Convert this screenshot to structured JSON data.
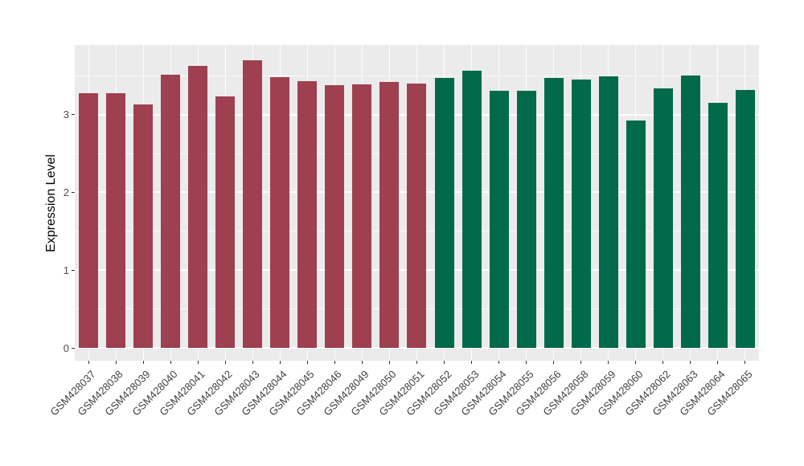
{
  "chart_data": {
    "type": "bar",
    "title": "",
    "xlabel": "",
    "ylabel": "Expression Level",
    "ylim": [
      0,
      3.9
    ],
    "yticks": [
      0,
      1,
      2,
      3
    ],
    "yminorticks": [
      0.5,
      1.5,
      2.5,
      3.5
    ],
    "grid": "on",
    "legend_position": "none",
    "panel_background": "#EBEBEB",
    "gridline_color": "#FFFFFF",
    "group_colors": {
      "group1": "#9E4050",
      "group2": "#006A4B"
    },
    "categories": [
      "GSM428037",
      "GSM428038",
      "GSM428039",
      "GSM428040",
      "GSM428041",
      "GSM428042",
      "GSM428043",
      "GSM428044",
      "GSM428045",
      "GSM428046",
      "GSM428049",
      "GSM428050",
      "GSM428051",
      "GSM428052",
      "GSM428053",
      "GSM428054",
      "GSM428055",
      "GSM428056",
      "GSM428058",
      "GSM428059",
      "GSM428060",
      "GSM428062",
      "GSM428063",
      "GSM428064",
      "GSM428065"
    ],
    "values": [
      3.28,
      3.28,
      3.13,
      3.51,
      3.63,
      3.23,
      3.7,
      3.48,
      3.43,
      3.38,
      3.39,
      3.42,
      3.4,
      3.47,
      3.56,
      3.31,
      3.31,
      3.47,
      3.45,
      3.49,
      2.92,
      3.34,
      3.5,
      3.15,
      3.32
    ],
    "groups": [
      "group1",
      "group1",
      "group1",
      "group1",
      "group1",
      "group1",
      "group1",
      "group1",
      "group1",
      "group1",
      "group1",
      "group1",
      "group1",
      "group2",
      "group2",
      "group2",
      "group2",
      "group2",
      "group2",
      "group2",
      "group2",
      "group2",
      "group2",
      "group2",
      "group2"
    ]
  }
}
